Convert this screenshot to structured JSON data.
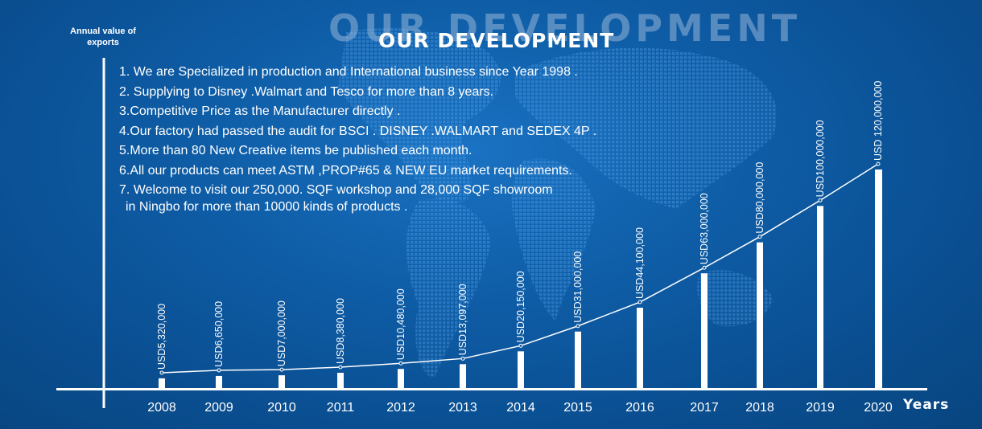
{
  "header": {
    "ghost_title": "OUR DEVELOPMENT",
    "title": "OUR DEVELOPMENT"
  },
  "points": [
    "1. We are Specialized in production and International business since Year 1998 .",
    "2. Supplying to Disney .Walmart and Tesco for more than 8 years.",
    "3.Competitive Price as the Manufacturer directly .",
    "4.Our factory had passed the audit for BSCI . DISNEY .WALMART and SEDEX 4P .",
    "5.More than 80 New Creative items be published each month.",
    "6.All our products can meet ASTM ,PROP#65 & NEW EU market requirements.",
    "7. Welcome to visit our 250,000. SQF workshop and 28,000 SQF showroom",
    " in Ningbo for more than 10000 kinds of products ."
  ],
  "colors": {
    "background": "#0f5ea8",
    "marks": "#ffffff"
  },
  "chart_data": {
    "type": "bar",
    "title": "OUR DEVELOPMENT",
    "ylabel": "Annual value of exports",
    "xlabel": "Years",
    "ylim": [
      0,
      120000000
    ],
    "grid": false,
    "categories": [
      "2008",
      "2009",
      "2010",
      "2011",
      "2012",
      "2013",
      "2014",
      "2015",
      "2016",
      "2017",
      "2018",
      "2019",
      "2020"
    ],
    "values": [
      5320000,
      6650000,
      7000000,
      8380000,
      10480000,
      13097000,
      20150000,
      31000000,
      44100000,
      63000000,
      80000000,
      100000000,
      120000000
    ],
    "data_labels": [
      "USD5,320,000",
      "USD6,650,000",
      "USD7,000,000",
      "USD8,380,000",
      "USD10,480,000",
      "USD13,097,000",
      "USD20,150,000",
      "USD31,000,000",
      "USD44,100,000",
      "USD63,000,000",
      "USD80,000,000",
      "USD100,000,000",
      "USD 120,000,000"
    ],
    "trend_line": true
  }
}
